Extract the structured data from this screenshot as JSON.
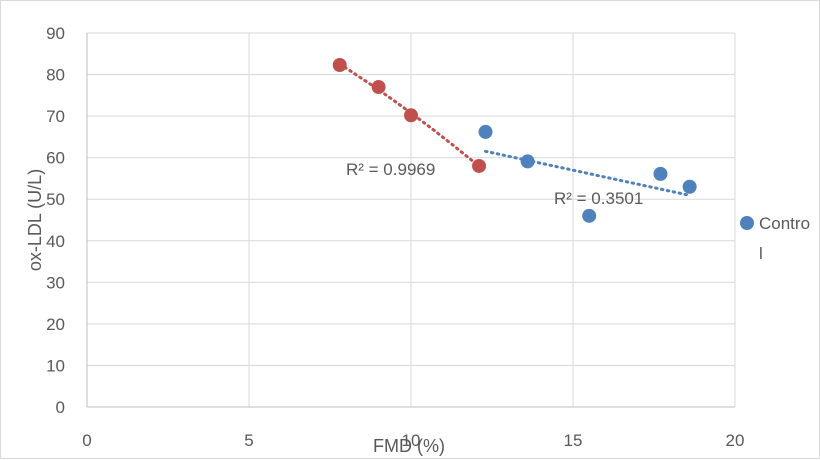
{
  "chart_data": {
    "type": "scatter",
    "xlabel": "FMD (%)",
    "ylabel": "ox-LDL (U/L)",
    "xlim": [
      0,
      20
    ],
    "ylim": [
      0,
      90
    ],
    "xticks": [
      "0",
      "5",
      "10",
      "15",
      "20"
    ],
    "yticks": [
      "0",
      "10",
      "20",
      "30",
      "40",
      "50",
      "60",
      "70",
      "80",
      "90"
    ],
    "grid": true,
    "legend_position": "right",
    "series": [
      {
        "name": "",
        "color": "#c0504d",
        "points": [
          {
            "x": 7.8,
            "y": 82.3
          },
          {
            "x": 9.0,
            "y": 77.0
          },
          {
            "x": 10.0,
            "y": 70.2
          },
          {
            "x": 12.1,
            "y": 58.0
          }
        ],
        "trendline": {
          "type": "polynomial",
          "r2_label": "R² = 0.9969"
        }
      },
      {
        "name": "Control",
        "legend_lines": [
          "Contro",
          "l"
        ],
        "color": "#4f81bd",
        "points": [
          {
            "x": 12.3,
            "y": 66.2
          },
          {
            "x": 13.6,
            "y": 59.1
          },
          {
            "x": 15.5,
            "y": 46.0
          },
          {
            "x": 17.7,
            "y": 56.1
          },
          {
            "x": 18.6,
            "y": 53.0
          }
        ],
        "trendline": {
          "type": "linear",
          "r2_label": "R² = 0.3501"
        }
      }
    ]
  }
}
